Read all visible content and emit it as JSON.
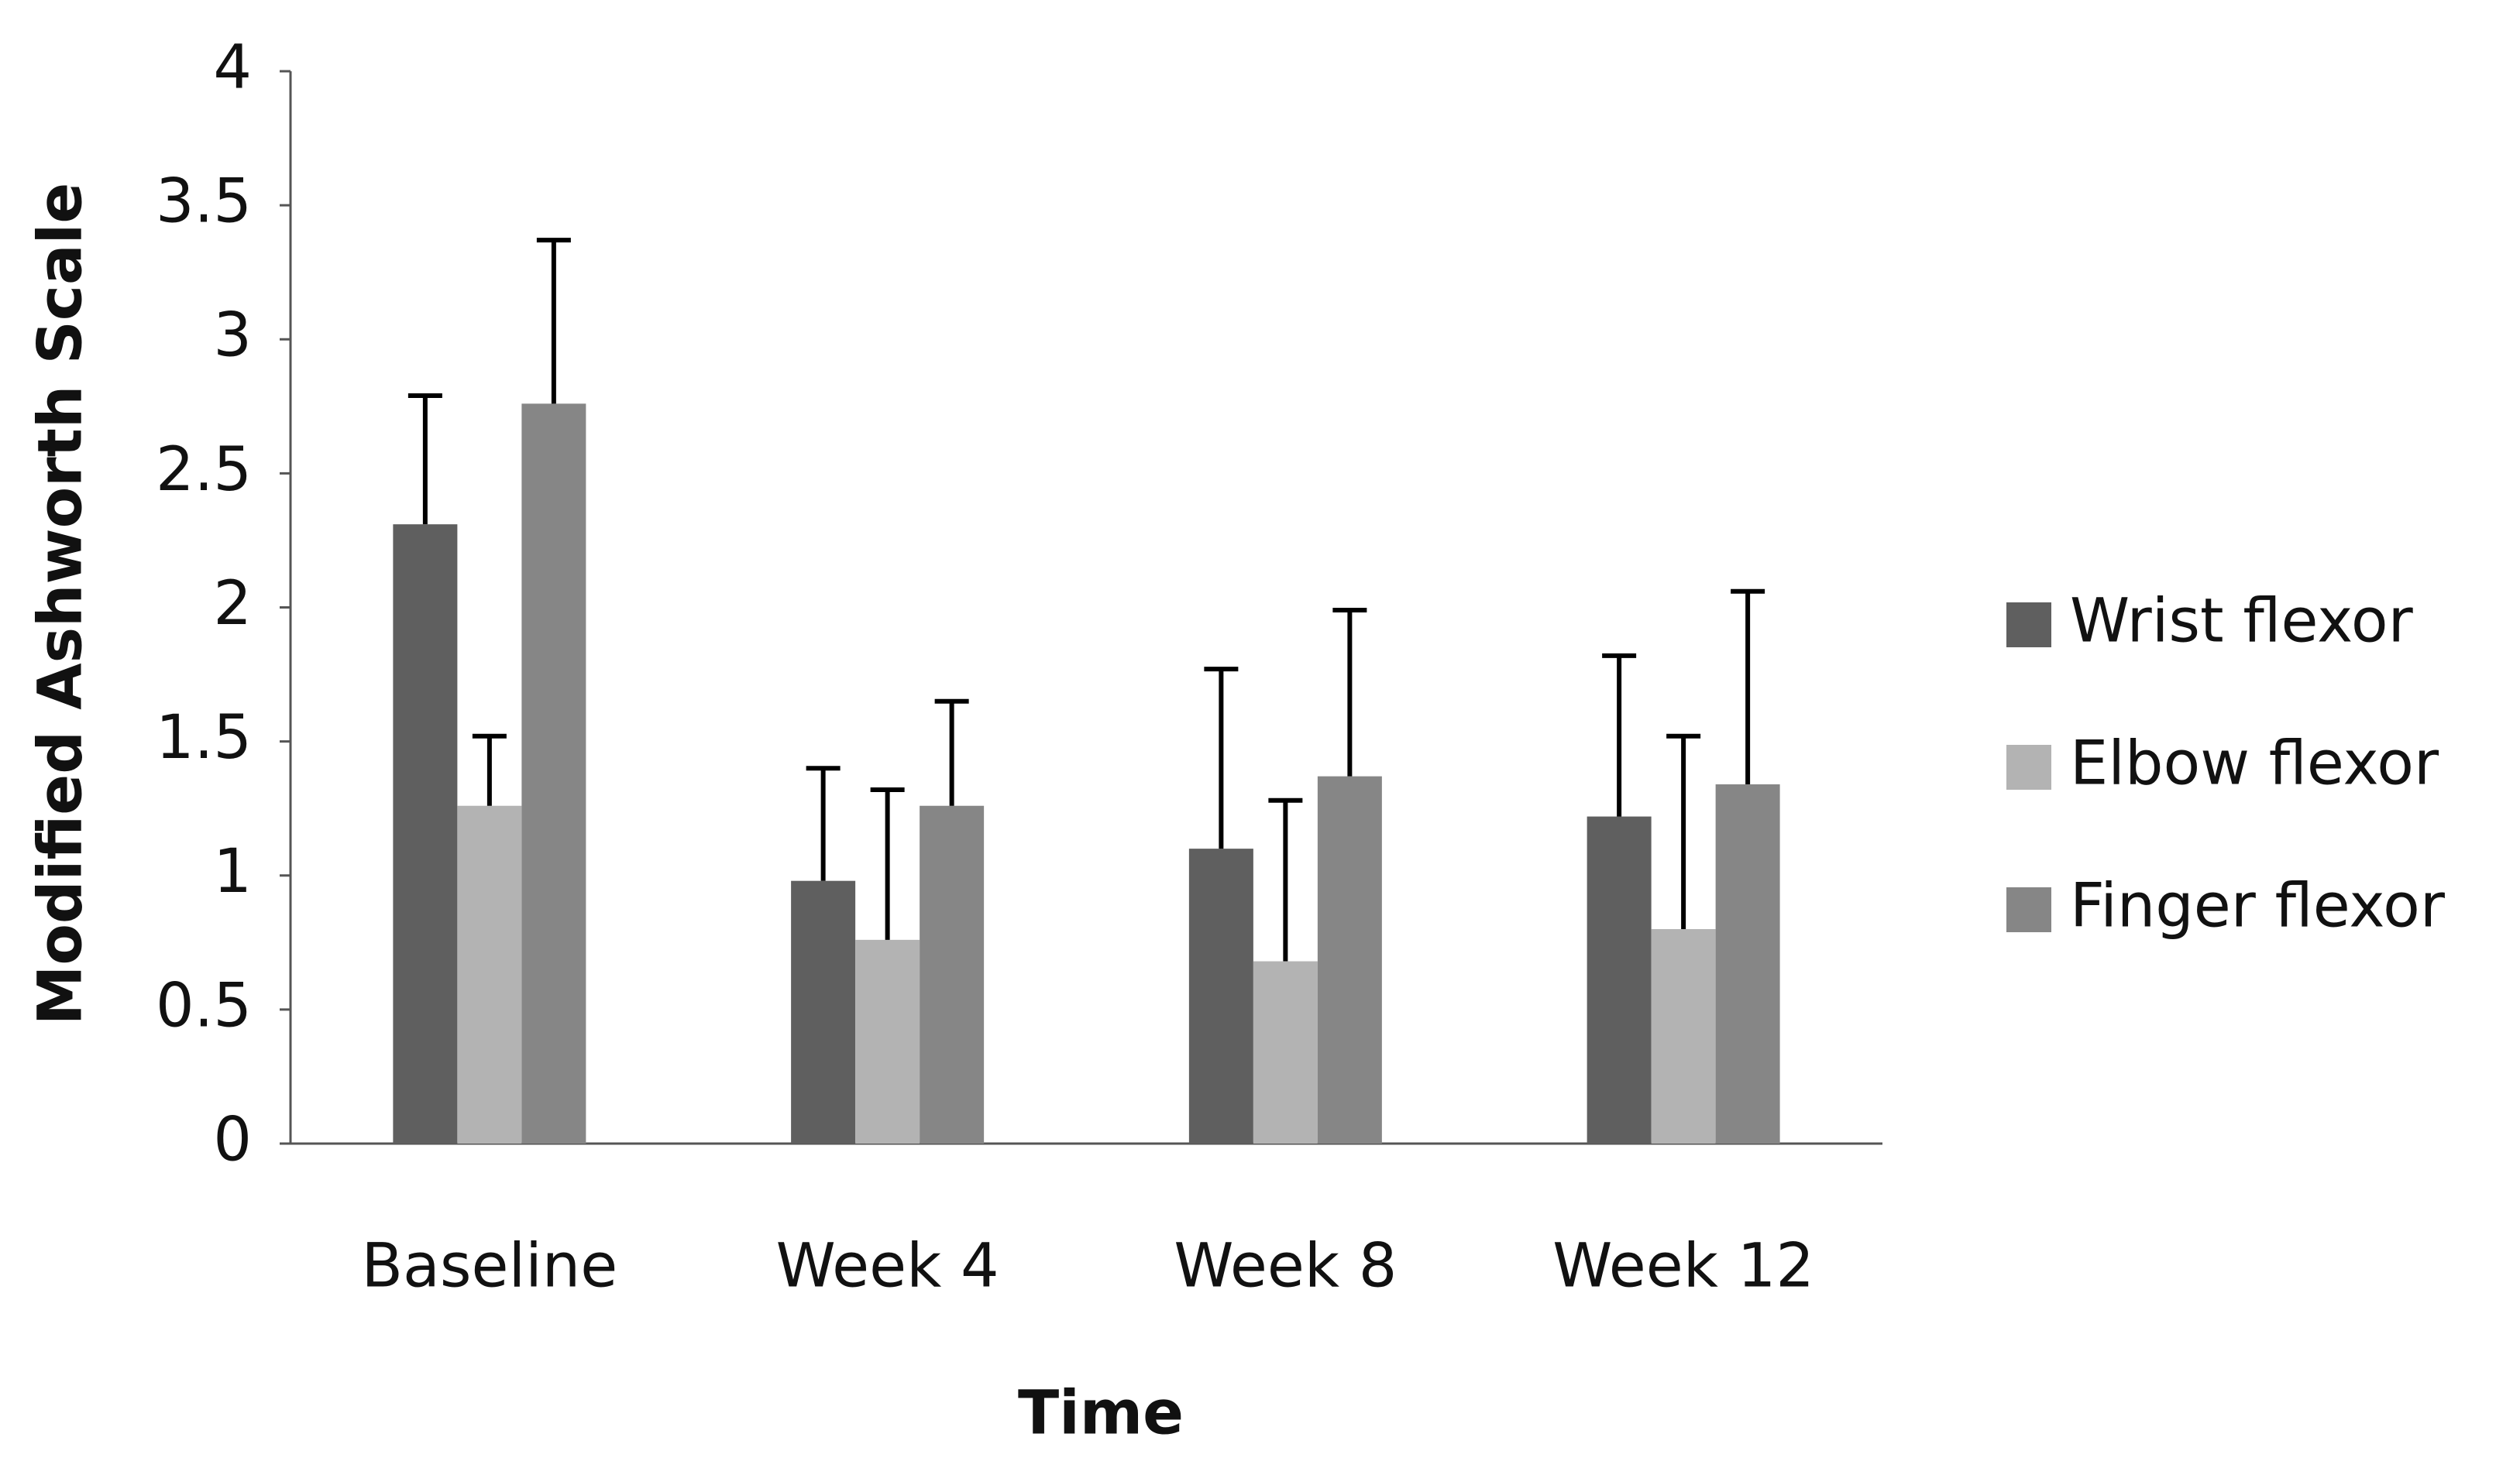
{
  "chart_data": {
    "type": "bar",
    "x_label": "Time",
    "y_label": "Modified Ashworth Scale",
    "categories": [
      "Baseline",
      "Week 4",
      "Week 8",
      "Week 12"
    ],
    "series": [
      {
        "name": "Wrist flexor",
        "color": "#5f5f5f",
        "values": [
          2.31,
          0.98,
          1.1,
          1.22
        ],
        "errors": [
          0.48,
          0.42,
          0.67,
          0.6
        ]
      },
      {
        "name": "Elbow flexor",
        "color": "#b3b3b3",
        "values": [
          1.26,
          0.76,
          0.68,
          0.8
        ],
        "errors": [
          0.26,
          0.56,
          0.6,
          0.72
        ]
      },
      {
        "name": "Finger flexor",
        "color": "#868686",
        "values": [
          2.76,
          1.26,
          1.37,
          1.34
        ],
        "errors": [
          0.61,
          0.39,
          0.62,
          0.72
        ]
      }
    ],
    "ylim": [
      0,
      4
    ],
    "yticks": [
      0,
      0.5,
      1,
      1.5,
      2,
      2.5,
      3,
      3.5,
      4
    ],
    "legend": "right"
  }
}
